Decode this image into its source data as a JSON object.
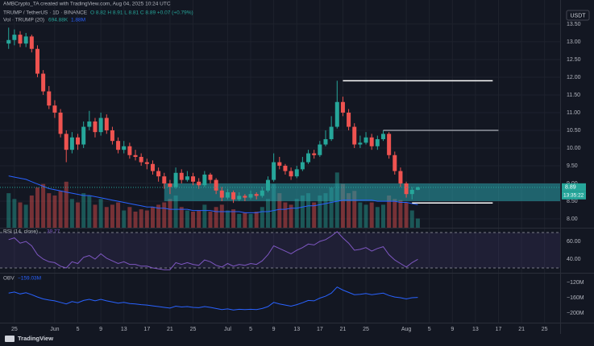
{
  "chart_data": {
    "type": "candlestick",
    "creator": "AMBCrypto_TA created with TradingView.com, Aug 04, 2025 10:24 UTC",
    "symbol": "TRUMP / TetherUS · 1D · BINANCE",
    "ohlc_label": "O 8.82 H 8.91 L 8.81 C 8.89 +0.07 (+0.79%)",
    "volume_title": "Vol · TRUMP (20)",
    "volume_value_label": "694.88K",
    "volume_ma_label": "1.88M",
    "currency": "USDT",
    "last_price_label": "8.89",
    "countdown": "13:35:22",
    "rsi_title": "RSI (14, close)",
    "rsi_value_label": "39.77",
    "obv_title": "OBV",
    "obv_value_label": "−159.03M",
    "brand": "TradingView",
    "xlim": [
      -1.5,
      95.7
    ],
    "xticks": [
      {
        "value": 1,
        "label": "25"
      },
      {
        "value": 8,
        "label": "Jun"
      },
      {
        "value": 12,
        "label": "5"
      },
      {
        "value": 16,
        "label": "9"
      },
      {
        "value": 20,
        "label": "13"
      },
      {
        "value": 24,
        "label": "17"
      },
      {
        "value": 28,
        "label": "21"
      },
      {
        "value": 32,
        "label": "25"
      },
      {
        "value": 38,
        "label": "Jul"
      },
      {
        "value": 42,
        "label": "5"
      },
      {
        "value": 46,
        "label": "9"
      },
      {
        "value": 50,
        "label": "13"
      },
      {
        "value": 54,
        "label": "17"
      },
      {
        "value": 58,
        "label": "21"
      },
      {
        "value": 62,
        "label": "25"
      },
      {
        "value": 69,
        "label": "Aug"
      },
      {
        "value": 73,
        "label": "5"
      },
      {
        "value": 77,
        "label": "9"
      },
      {
        "value": 81,
        "label": "13"
      },
      {
        "value": 85,
        "label": "17"
      },
      {
        "value": 89,
        "label": "21"
      },
      {
        "value": 93,
        "label": "25"
      }
    ],
    "ylim": [
      7.75,
      14.18
    ],
    "yticks": [
      {
        "value": 13.5,
        "label": "13.50"
      },
      {
        "value": 13,
        "label": "13.00"
      },
      {
        "value": 12.5,
        "label": "12.50"
      },
      {
        "value": 12,
        "label": "12.00"
      },
      {
        "value": 11.5,
        "label": "11.50"
      },
      {
        "value": 11,
        "label": "11.00"
      },
      {
        "value": 10.5,
        "label": "10.50"
      },
      {
        "value": 10,
        "label": "10.00"
      },
      {
        "value": 9.5,
        "label": "9.50"
      },
      {
        "value": 9,
        "label": "9.00"
      },
      {
        "value": 8.5,
        "label": "8.50"
      },
      {
        "value": 8,
        "label": "8.00"
      }
    ],
    "up_color": "#26a69a",
    "down_color": "#ef5350",
    "open": [
      12.95,
      13.05,
      13.2,
      12.95,
      13.15,
      12.8,
      12.1,
      11.6,
      11.2,
      11,
      10.4,
      9.95,
      10.3,
      10.1,
      10.6,
      10.75,
      10.45,
      10.85,
      10.5,
      10.2,
      9.95,
      10.05,
      9.8,
      9.75,
      9.6,
      9.55,
      9.35,
      9.2,
      9,
      8.9,
      9.3,
      9.1,
      9.2,
      9.05,
      8.95,
      9.25,
      9.1,
      8.8,
      8.6,
      8.75,
      8.55,
      8.65,
      8.6,
      8.7,
      8.65,
      8.8,
      9.1,
      9.6,
      9.5,
      9.35,
      9.2,
      9.4,
      9.6,
      9.85,
      9.8,
      10.1,
      10.25,
      10.6,
      11.3,
      11,
      10.6,
      10.1,
      10.15,
      10.3,
      10.05,
      10.25,
      10.4,
      9.8,
      9.35,
      9,
      8.7,
      8.82
    ],
    "high": [
      13.4,
      13.35,
      13.3,
      13.25,
      13.2,
      12.9,
      12.2,
      11.75,
      11.35,
      11.1,
      10.5,
      10.45,
      10.4,
      10.75,
      11.05,
      10.85,
      11,
      10.95,
      10.6,
      10.3,
      10.2,
      10.15,
      9.95,
      9.85,
      9.7,
      9.65,
      9.45,
      9.3,
      9.1,
      9.45,
      9.4,
      9.35,
      9.3,
      9.15,
      9.35,
      9.3,
      9.15,
      8.9,
      8.85,
      8.8,
      8.75,
      8.7,
      8.8,
      8.75,
      8.9,
      9.2,
      9.85,
      9.75,
      9.55,
      9.45,
      9.5,
      9.75,
      9.95,
      9.95,
      10.2,
      10.5,
      10.9,
      11.9,
      11.45,
      11.1,
      10.7,
      10.35,
      10.45,
      10.4,
      10.35,
      10.5,
      10.45,
      9.9,
      9.45,
      9.05,
      8.9,
      8.91
    ],
    "low": [
      12.8,
      12.9,
      12.85,
      12.85,
      12.7,
      12,
      11.5,
      11.1,
      10.85,
      10.3,
      9.6,
      9.85,
      9.95,
      10,
      10.5,
      10.3,
      10.35,
      10.4,
      10.1,
      9.85,
      9.85,
      9.7,
      9.65,
      9.5,
      9.4,
      9.25,
      9.05,
      8.85,
      8.7,
      8.85,
      9,
      9.05,
      8.95,
      8.85,
      8.9,
      9,
      8.7,
      8.5,
      8.55,
      8.45,
      8.5,
      8.5,
      8.55,
      8.55,
      8.6,
      8.75,
      9.05,
      9.4,
      9.25,
      9.1,
      9.15,
      9.35,
      9.55,
      9.7,
      9.75,
      10.05,
      10.2,
      10.55,
      10.9,
      10.5,
      10,
      10,
      10.1,
      9.95,
      9.95,
      10.2,
      9.7,
      9.25,
      8.9,
      8.6,
      8.55,
      8.81
    ],
    "close": [
      13.05,
      13.2,
      12.95,
      13.15,
      12.8,
      12.1,
      11.6,
      11.2,
      11,
      10.4,
      9.95,
      10.3,
      10.1,
      10.6,
      10.75,
      10.45,
      10.85,
      10.5,
      10.2,
      9.95,
      10.05,
      9.8,
      9.75,
      9.6,
      9.55,
      9.35,
      9.2,
      9,
      8.9,
      9.3,
      9.1,
      9.2,
      9.05,
      8.95,
      9.25,
      9.1,
      8.8,
      8.6,
      8.75,
      8.55,
      8.65,
      8.6,
      8.7,
      8.65,
      8.8,
      9.1,
      9.6,
      9.5,
      9.35,
      9.2,
      9.4,
      9.6,
      9.85,
      9.8,
      10.1,
      10.25,
      10.6,
      11.3,
      11,
      10.6,
      10.1,
      10.15,
      10.3,
      10.05,
      10.25,
      10.4,
      9.8,
      9.35,
      9,
      8.7,
      8.82,
      8.89
    ],
    "zone": {
      "from": 27,
      "low": 8.5,
      "high": 9,
      "color": "#2aa3ab"
    },
    "levels": [
      {
        "price": 11.9,
        "from": 58,
        "to": 84,
        "color": "#ffffff"
      },
      {
        "price": 10.5,
        "from": 65,
        "to": 85,
        "color": "#9598a1"
      },
      {
        "price": 8.45,
        "from": 70,
        "to": 84,
        "color": "#ffffff"
      }
    ],
    "vlim": [
      0,
      100
    ],
    "volume": [
      30,
      25,
      22,
      20,
      28,
      35,
      38,
      30,
      28,
      32,
      40,
      25,
      22,
      30,
      28,
      20,
      25,
      18,
      20,
      22,
      15,
      18,
      14,
      16,
      15,
      18,
      20,
      22,
      25,
      28,
      18,
      15,
      14,
      15,
      20,
      14,
      18,
      20,
      15,
      16,
      12,
      13,
      12,
      14,
      18,
      25,
      38,
      30,
      22,
      20,
      25,
      28,
      30,
      22,
      28,
      30,
      35,
      48,
      38,
      30,
      32,
      22,
      20,
      22,
      18,
      20,
      28,
      25,
      24,
      22,
      15,
      8
    ],
    "volume_ma": [
      45,
      44,
      43,
      42,
      40,
      38,
      36,
      34,
      33,
      32,
      31,
      30,
      29,
      28,
      28,
      27,
      26,
      25,
      24,
      23,
      22,
      21,
      20,
      19,
      18,
      18,
      17,
      17,
      16,
      16,
      16,
      16,
      15,
      15,
      15,
      15,
      14,
      14,
      14,
      14,
      14,
      13,
      13,
      13,
      14,
      14,
      15,
      16,
      16,
      17,
      17,
      18,
      19,
      19,
      20,
      21,
      22,
      23,
      24,
      24,
      24,
      24,
      24,
      24,
      23,
      23,
      23,
      23,
      22,
      22,
      21,
      20
    ],
    "volume_ma_color": "#2962ff",
    "rsi_lim": [
      25.5,
      73.6
    ],
    "rsi_band": [
      30,
      70
    ],
    "rsi_ticks": [
      {
        "value": 60,
        "label": "60.00"
      },
      {
        "value": 40,
        "label": "40.00"
      }
    ],
    "rsi_color": "#7e57c2",
    "rsi": [
      62,
      64,
      58,
      60,
      55,
      45,
      40,
      37,
      36,
      32,
      30,
      37,
      35,
      42,
      44,
      40,
      46,
      41,
      38,
      35,
      37,
      34,
      34,
      32,
      32,
      30,
      29,
      28,
      28,
      36,
      34,
      36,
      34,
      33,
      39,
      37,
      33,
      31,
      35,
      32,
      34,
      33,
      35,
      34,
      38,
      45,
      55,
      52,
      49,
      46,
      50,
      53,
      57,
      56,
      60,
      62,
      66,
      71,
      64,
      58,
      50,
      51,
      53,
      49,
      52,
      54,
      45,
      39,
      35,
      31,
      36,
      39.77
    ],
    "obv_lim": [
      -227,
      -97
    ],
    "obv_ticks": [
      {
        "value": -120,
        "label": "−120M"
      },
      {
        "value": -160,
        "label": "−160M"
      },
      {
        "value": -200,
        "label": "−200M"
      }
    ],
    "obv_color": "#2962ff",
    "obv": [
      -148,
      -145,
      -150,
      -147,
      -152,
      -158,
      -163,
      -166,
      -168,
      -172,
      -176,
      -170,
      -173,
      -167,
      -164,
      -168,
      -164,
      -168,
      -171,
      -174,
      -172,
      -175,
      -176,
      -178,
      -179,
      -181,
      -183,
      -185,
      -187,
      -182,
      -184,
      -183,
      -185,
      -186,
      -183,
      -185,
      -188,
      -191,
      -189,
      -192,
      -190,
      -191,
      -190,
      -191,
      -188,
      -183,
      -172,
      -176,
      -179,
      -182,
      -178,
      -173,
      -167,
      -168,
      -161,
      -156,
      -148,
      -132,
      -140,
      -146,
      -152,
      -151,
      -149,
      -152,
      -150,
      -148,
      -154,
      -158,
      -160,
      -163,
      -160,
      -159.03
    ]
  }
}
